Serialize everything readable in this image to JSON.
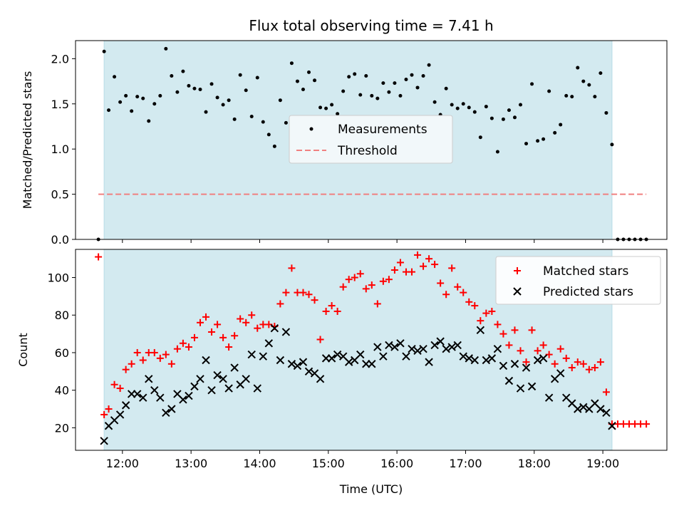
{
  "chart_data": [
    {
      "type": "scatter",
      "title": "Flux total observing time = 7.41 h",
      "xlabel": "",
      "ylabel": "Matched/Predicted stars",
      "xlim": [
        "11:19",
        "19:56"
      ],
      "ylim": [
        0,
        2.2
      ],
      "yticks": [
        "0.0",
        "0.5",
        "1.0",
        "1.5",
        "2.0"
      ],
      "shaded_span": [
        "11:44",
        "19:08"
      ],
      "shade_color": "#d3eaf0",
      "legend": {
        "placement": "center",
        "entries": [
          "Measurements",
          "Threshold"
        ]
      },
      "threshold": {
        "name": "Threshold",
        "value": 0.5,
        "x_range": [
          "11:39",
          "19:38"
        ],
        "color": "#f08080"
      },
      "series": [
        {
          "name": "Measurements",
          "color": "#000000",
          "x": [
            "11:39",
            "11:44",
            "11:48",
            "11:53",
            "11:58",
            "12:03",
            "12:08",
            "12:13",
            "12:18",
            "12:23",
            "12:28",
            "12:33",
            "12:38",
            "12:43",
            "12:48",
            "12:53",
            "12:58",
            "13:03",
            "13:08",
            "13:13",
            "13:18",
            "13:23",
            "13:28",
            "13:33",
            "13:38",
            "13:43",
            "13:48",
            "13:53",
            "13:58",
            "14:03",
            "14:08",
            "14:13",
            "14:18",
            "14:23",
            "14:28",
            "14:33",
            "14:38",
            "14:43",
            "14:48",
            "14:53",
            "14:58",
            "15:03",
            "15:08",
            "15:13",
            "15:18",
            "15:23",
            "15:28",
            "15:33",
            "15:38",
            "15:43",
            "15:48",
            "15:53",
            "15:58",
            "16:03",
            "16:08",
            "16:13",
            "16:18",
            "16:23",
            "16:28",
            "16:33",
            "16:38",
            "16:43",
            "16:48",
            "16:53",
            "16:58",
            "17:03",
            "17:08",
            "17:13",
            "17:18",
            "17:23",
            "17:28",
            "17:33",
            "17:38",
            "17:43",
            "17:48",
            "17:53",
            "17:58",
            "18:03",
            "18:08",
            "18:13",
            "18:18",
            "18:23",
            "18:28",
            "18:33",
            "18:38",
            "18:43",
            "18:48",
            "18:53",
            "18:58",
            "19:03",
            "19:08",
            "19:13",
            "19:18",
            "19:23",
            "19:28",
            "19:33",
            "19:38"
          ],
          "y": [
            0.0,
            2.08,
            1.43,
            1.8,
            1.52,
            1.59,
            1.42,
            1.58,
            1.56,
            1.31,
            1.5,
            1.59,
            2.11,
            1.81,
            1.63,
            1.86,
            1.7,
            1.67,
            1.66,
            1.41,
            1.72,
            1.57,
            1.49,
            1.54,
            1.33,
            1.82,
            1.65,
            1.36,
            1.79,
            1.3,
            1.16,
            1.03,
            1.54,
            1.29,
            1.95,
            1.75,
            1.66,
            1.85,
            1.76,
            1.46,
            1.45,
            1.49,
            1.39,
            1.64,
            1.8,
            1.83,
            1.6,
            1.81,
            1.59,
            1.56,
            1.73,
            1.63,
            1.73,
            1.59,
            1.77,
            1.82,
            1.68,
            1.81,
            1.93,
            1.52,
            1.38,
            1.67,
            1.49,
            1.45,
            1.5,
            1.46,
            1.41,
            1.13,
            1.47,
            1.34,
            0.97,
            1.33,
            1.43,
            1.35,
            1.49,
            1.06,
            1.72,
            1.09,
            1.11,
            1.64,
            1.18,
            1.27,
            1.59,
            1.58,
            1.9,
            1.75,
            1.71,
            1.58,
            1.84,
            1.4,
            1.05,
            0.0,
            0.0,
            0.0,
            0.0,
            0.0,
            0.0
          ]
        }
      ]
    },
    {
      "type": "scatter",
      "title": "",
      "xlabel": "Time (UTC)",
      "ylabel": "Count",
      "xlim": [
        "11:19",
        "19:56"
      ],
      "ylim": [
        8,
        115
      ],
      "yticks": [
        "20",
        "40",
        "60",
        "80",
        "100"
      ],
      "xticks": [
        "12:00",
        "13:00",
        "14:00",
        "15:00",
        "16:00",
        "17:00",
        "18:00",
        "19:00"
      ],
      "shaded_span": [
        "11:44",
        "19:08"
      ],
      "legend": {
        "placement": "top-right",
        "entries": [
          "Matched stars",
          "Predicted stars"
        ]
      },
      "series": [
        {
          "name": "Matched stars",
          "marker": "plus",
          "color": "#ff0000",
          "x": [
            "11:39",
            "11:44",
            "11:48",
            "11:53",
            "11:58",
            "12:03",
            "12:08",
            "12:13",
            "12:18",
            "12:23",
            "12:28",
            "12:33",
            "12:38",
            "12:43",
            "12:48",
            "12:53",
            "12:58",
            "13:03",
            "13:08",
            "13:13",
            "13:18",
            "13:23",
            "13:28",
            "13:33",
            "13:38",
            "13:43",
            "13:48",
            "13:53",
            "13:58",
            "14:03",
            "14:08",
            "14:13",
            "14:18",
            "14:23",
            "14:28",
            "14:33",
            "14:38",
            "14:43",
            "14:48",
            "14:53",
            "14:58",
            "15:03",
            "15:08",
            "15:13",
            "15:18",
            "15:23",
            "15:28",
            "15:33",
            "15:38",
            "15:43",
            "15:48",
            "15:53",
            "15:58",
            "16:03",
            "16:08",
            "16:13",
            "16:18",
            "16:23",
            "16:28",
            "16:33",
            "16:38",
            "16:43",
            "16:48",
            "16:53",
            "16:58",
            "17:03",
            "17:08",
            "17:13",
            "17:18",
            "17:23",
            "17:28",
            "17:33",
            "17:38",
            "17:43",
            "17:48",
            "17:53",
            "17:58",
            "18:03",
            "18:08",
            "18:13",
            "18:18",
            "18:23",
            "18:28",
            "18:33",
            "18:38",
            "18:43",
            "18:48",
            "18:53",
            "18:58",
            "19:03",
            "19:08",
            "19:13",
            "19:18",
            "19:23",
            "19:28",
            "19:33",
            "19:38"
          ],
          "y": [
            111,
            27,
            30,
            43,
            41,
            51,
            54,
            60,
            56,
            60,
            60,
            57,
            59,
            54,
            62,
            65,
            63,
            68,
            76,
            79,
            71,
            75,
            68,
            63,
            69,
            78,
            76,
            80,
            73,
            75,
            75,
            74,
            86,
            92,
            105,
            92,
            92,
            91,
            88,
            67,
            82,
            85,
            82,
            95,
            99,
            100,
            102,
            94,
            96,
            86,
            98,
            99,
            104,
            108,
            103,
            103,
            112,
            106,
            110,
            107,
            97,
            91,
            105,
            95,
            92,
            87,
            85,
            77,
            81,
            82,
            75,
            70,
            64,
            72,
            61,
            55,
            72,
            61,
            64,
            59,
            54,
            62,
            57,
            52,
            55,
            54,
            51,
            52,
            55,
            39,
            22,
            22,
            22,
            22,
            22,
            22,
            22
          ]
        },
        {
          "name": "Predicted stars",
          "marker": "x",
          "color": "#000000",
          "x": [
            "11:44",
            "11:48",
            "11:53",
            "11:58",
            "12:03",
            "12:08",
            "12:13",
            "12:18",
            "12:23",
            "12:28",
            "12:33",
            "12:38",
            "12:43",
            "12:48",
            "12:53",
            "12:58",
            "13:03",
            "13:08",
            "13:13",
            "13:18",
            "13:23",
            "13:28",
            "13:33",
            "13:38",
            "13:43",
            "13:48",
            "13:53",
            "13:58",
            "14:03",
            "14:08",
            "14:13",
            "14:18",
            "14:23",
            "14:28",
            "14:33",
            "14:38",
            "14:43",
            "14:48",
            "14:53",
            "14:58",
            "15:03",
            "15:08",
            "15:13",
            "15:18",
            "15:23",
            "15:28",
            "15:33",
            "15:38",
            "15:43",
            "15:48",
            "15:53",
            "15:58",
            "16:03",
            "16:08",
            "16:13",
            "16:18",
            "16:23",
            "16:28",
            "16:33",
            "16:38",
            "16:43",
            "16:48",
            "16:53",
            "16:58",
            "17:03",
            "17:08",
            "17:13",
            "17:18",
            "17:23",
            "17:28",
            "17:33",
            "17:38",
            "17:43",
            "17:48",
            "17:53",
            "17:58",
            "18:03",
            "18:08",
            "18:13",
            "18:18",
            "18:23",
            "18:28",
            "18:33",
            "18:38",
            "18:43",
            "18:48",
            "18:53",
            "18:58",
            "19:03",
            "19:08"
          ],
          "y": [
            13,
            21,
            24,
            27,
            32,
            38,
            38,
            36,
            46,
            40,
            36,
            28,
            30,
            38,
            35,
            37,
            42,
            46,
            56,
            40,
            48,
            46,
            41,
            52,
            43,
            46,
            59,
            41,
            58,
            65,
            73,
            56,
            71,
            54,
            53,
            55,
            50,
            49,
            46,
            57,
            57,
            59,
            58,
            55,
            56,
            59,
            54,
            54,
            63,
            58,
            64,
            63,
            65,
            58,
            62,
            61,
            62,
            55,
            64,
            66,
            62,
            63,
            64,
            58,
            57,
            56,
            72,
            56,
            57,
            62,
            53,
            45,
            54,
            41,
            52,
            42,
            56,
            57,
            36,
            46,
            49,
            36,
            33,
            30,
            31,
            30,
            33,
            30,
            28,
            21
          ]
        }
      ]
    }
  ]
}
